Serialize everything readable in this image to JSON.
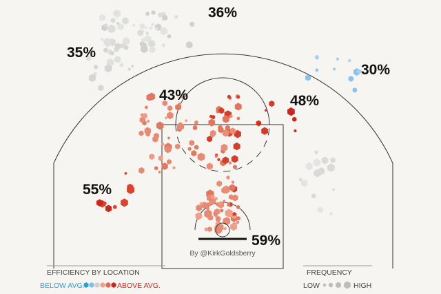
{
  "chart_data": {
    "type": "shot-chart",
    "zones": {
      "values": [
        36,
        35,
        30,
        43,
        48,
        55,
        59
      ],
      "value_labels": [
        "36%",
        "35%",
        "30%",
        "43%",
        "48%",
        "55%",
        "59%"
      ]
    },
    "annotation": "By @KirkGoldsberry",
    "legend": {
      "efficiency_title": "EFFICIENCY BY LOCATION",
      "below_label": "BELOW AVG.",
      "above_label": "ABOVE AVG.",
      "frequency_title": "FREQUENCY",
      "low_label": "LOW",
      "high_label": "HIGH"
    }
  }
}
